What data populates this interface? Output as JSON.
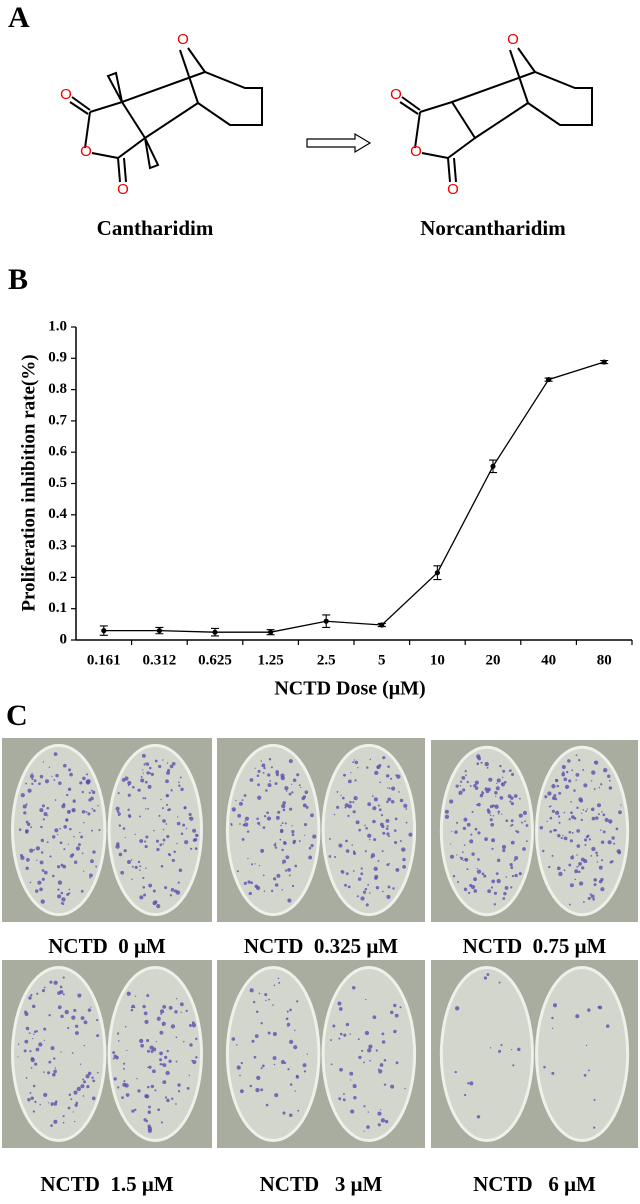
{
  "panel_a": {
    "letter": "A",
    "atom_label": "O",
    "left_name": "Cantharidim",
    "right_name": "Norcantharidim"
  },
  "panel_b": {
    "letter": "B"
  },
  "chart_data": {
    "type": "line",
    "categories": [
      "0.161",
      "0.312",
      "0.625",
      "1.25",
      "2.5",
      "5",
      "10",
      "20",
      "40",
      "80"
    ],
    "values": [
      0.03,
      0.03,
      0.025,
      0.025,
      0.06,
      0.048,
      0.215,
      0.555,
      0.832,
      0.888
    ],
    "errors": [
      0.015,
      0.01,
      0.012,
      0.008,
      0.02,
      0.005,
      0.022,
      0.02,
      0.005,
      0.005
    ],
    "color": "#000000",
    "ylim": [
      0,
      1
    ],
    "yticks": [
      0,
      0.1,
      0.2,
      0.3,
      0.4,
      0.5,
      0.6,
      0.7,
      0.8,
      0.9,
      {
        "value": 1,
        "label": "1.0"
      }
    ],
    "ylabel": "Proliferation inhibition rate(%)",
    "xlabel": "NCTD Dose (μM)"
  },
  "panel_c": {
    "letter": "C",
    "labels": [
      "NCTD  0 μM",
      "NCTD  0.325 μM",
      "NCTD  0.75 μM",
      "NCTD  1.5 μM",
      "NCTD   3 μM",
      "NCTD   6 μM"
    ]
  }
}
